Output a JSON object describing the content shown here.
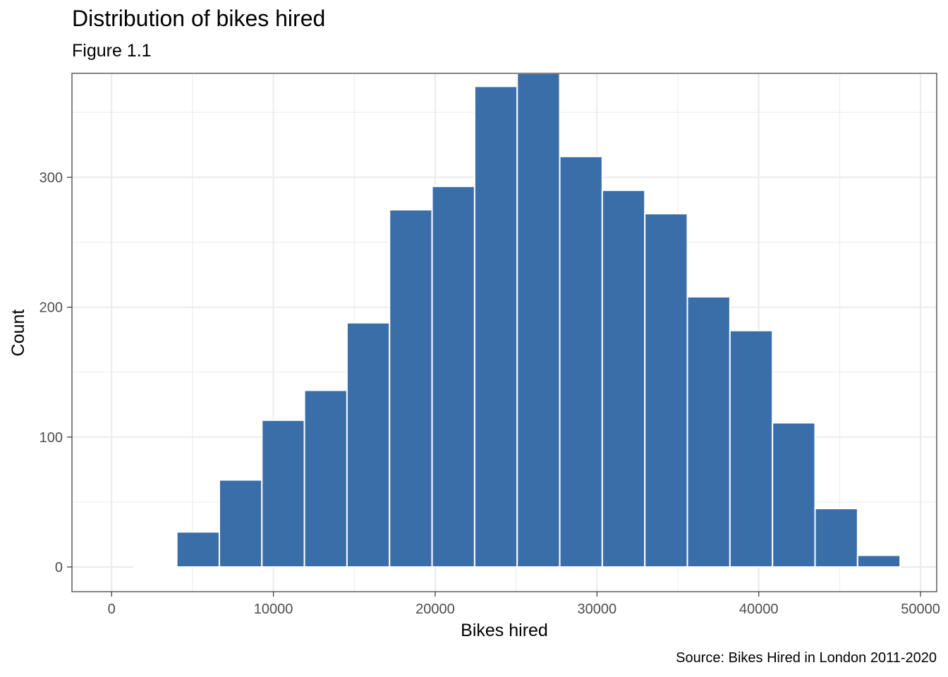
{
  "chart_data": {
    "type": "bar",
    "title": "Distribution of bikes hired",
    "subtitle": "Figure 1.1",
    "caption": "Source: Bikes Hired in London 2011-2020",
    "xlabel": "Bikes hired",
    "ylabel": "Count",
    "xlim": [
      -2450,
      51000
    ],
    "ylim": [
      -19,
      380
    ],
    "x_ticks": [
      0,
      10000,
      20000,
      30000,
      40000,
      50000
    ],
    "y_ticks": [
      0,
      100,
      200,
      300
    ],
    "grid": true,
    "bin_width": 2630,
    "bins": [
      {
        "start": 1400,
        "end": 4030,
        "count": 1
      },
      {
        "start": 4030,
        "end": 6660,
        "count": 27
      },
      {
        "start": 6660,
        "end": 9290,
        "count": 67
      },
      {
        "start": 9290,
        "end": 11920,
        "count": 113
      },
      {
        "start": 11920,
        "end": 14550,
        "count": 136
      },
      {
        "start": 14550,
        "end": 17180,
        "count": 188
      },
      {
        "start": 17180,
        "end": 19810,
        "count": 275
      },
      {
        "start": 19810,
        "end": 22440,
        "count": 293
      },
      {
        "start": 22440,
        "end": 25070,
        "count": 370
      },
      {
        "start": 25070,
        "end": 27700,
        "count": 380
      },
      {
        "start": 27700,
        "end": 30330,
        "count": 316
      },
      {
        "start": 30330,
        "end": 32960,
        "count": 290
      },
      {
        "start": 32960,
        "end": 35590,
        "count": 272
      },
      {
        "start": 35590,
        "end": 38220,
        "count": 208
      },
      {
        "start": 38220,
        "end": 40850,
        "count": 182
      },
      {
        "start": 40850,
        "end": 43480,
        "count": 111
      },
      {
        "start": 43480,
        "end": 46110,
        "count": 45
      },
      {
        "start": 46110,
        "end": 48740,
        "count": 9
      }
    ],
    "colors": {
      "bar_fill": "#3A6EA8",
      "bar_stroke": "#ffffff",
      "grid": "#EBEBEB",
      "panel_border": "#333333",
      "tick_text": "#4D4D4D",
      "text": "#000000"
    }
  }
}
